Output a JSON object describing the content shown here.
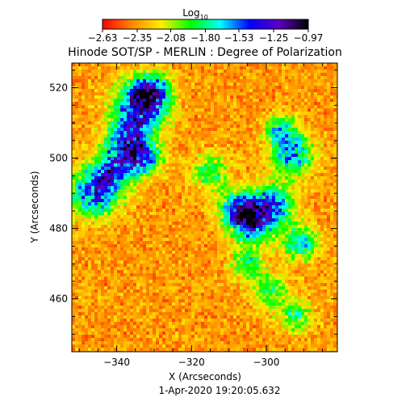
{
  "chart_data": {
    "type": "heatmap",
    "title": "Hinode SOT/SP - MERLIN : Degree of Polarization",
    "colorbar": {
      "label_base": "Log",
      "label_sub": "10",
      "ticks": [
        -2.63,
        -2.35,
        -2.08,
        -1.8,
        -1.53,
        -1.25,
        -0.97
      ],
      "tick_labels": [
        "−2.63",
        "−2.35",
        "−2.08",
        "−1.80",
        "−1.53",
        "−1.25",
        "−0.97"
      ],
      "range": [
        -2.63,
        -0.97
      ],
      "colors": [
        "#ff0000",
        "#ff8800",
        "#ffee00",
        "#00ff00",
        "#00ffff",
        "#0000ff",
        "#6000c0",
        "#000000"
      ]
    },
    "xlabel": "X (Arcseconds)",
    "ylabel": "Y (Arcseconds)",
    "xlim": [
      -352,
      -281
    ],
    "ylim": [
      445,
      527
    ],
    "xticks": [
      -340,
      -320,
      -300
    ],
    "xtick_labels": [
      "−340",
      "−320",
      "−300"
    ],
    "yticks": [
      460,
      480,
      500,
      520
    ],
    "ytick_labels": [
      "460",
      "480",
      "500",
      "520"
    ],
    "footer": "1-Apr-2020 19:20:05.632",
    "grid": false
  }
}
